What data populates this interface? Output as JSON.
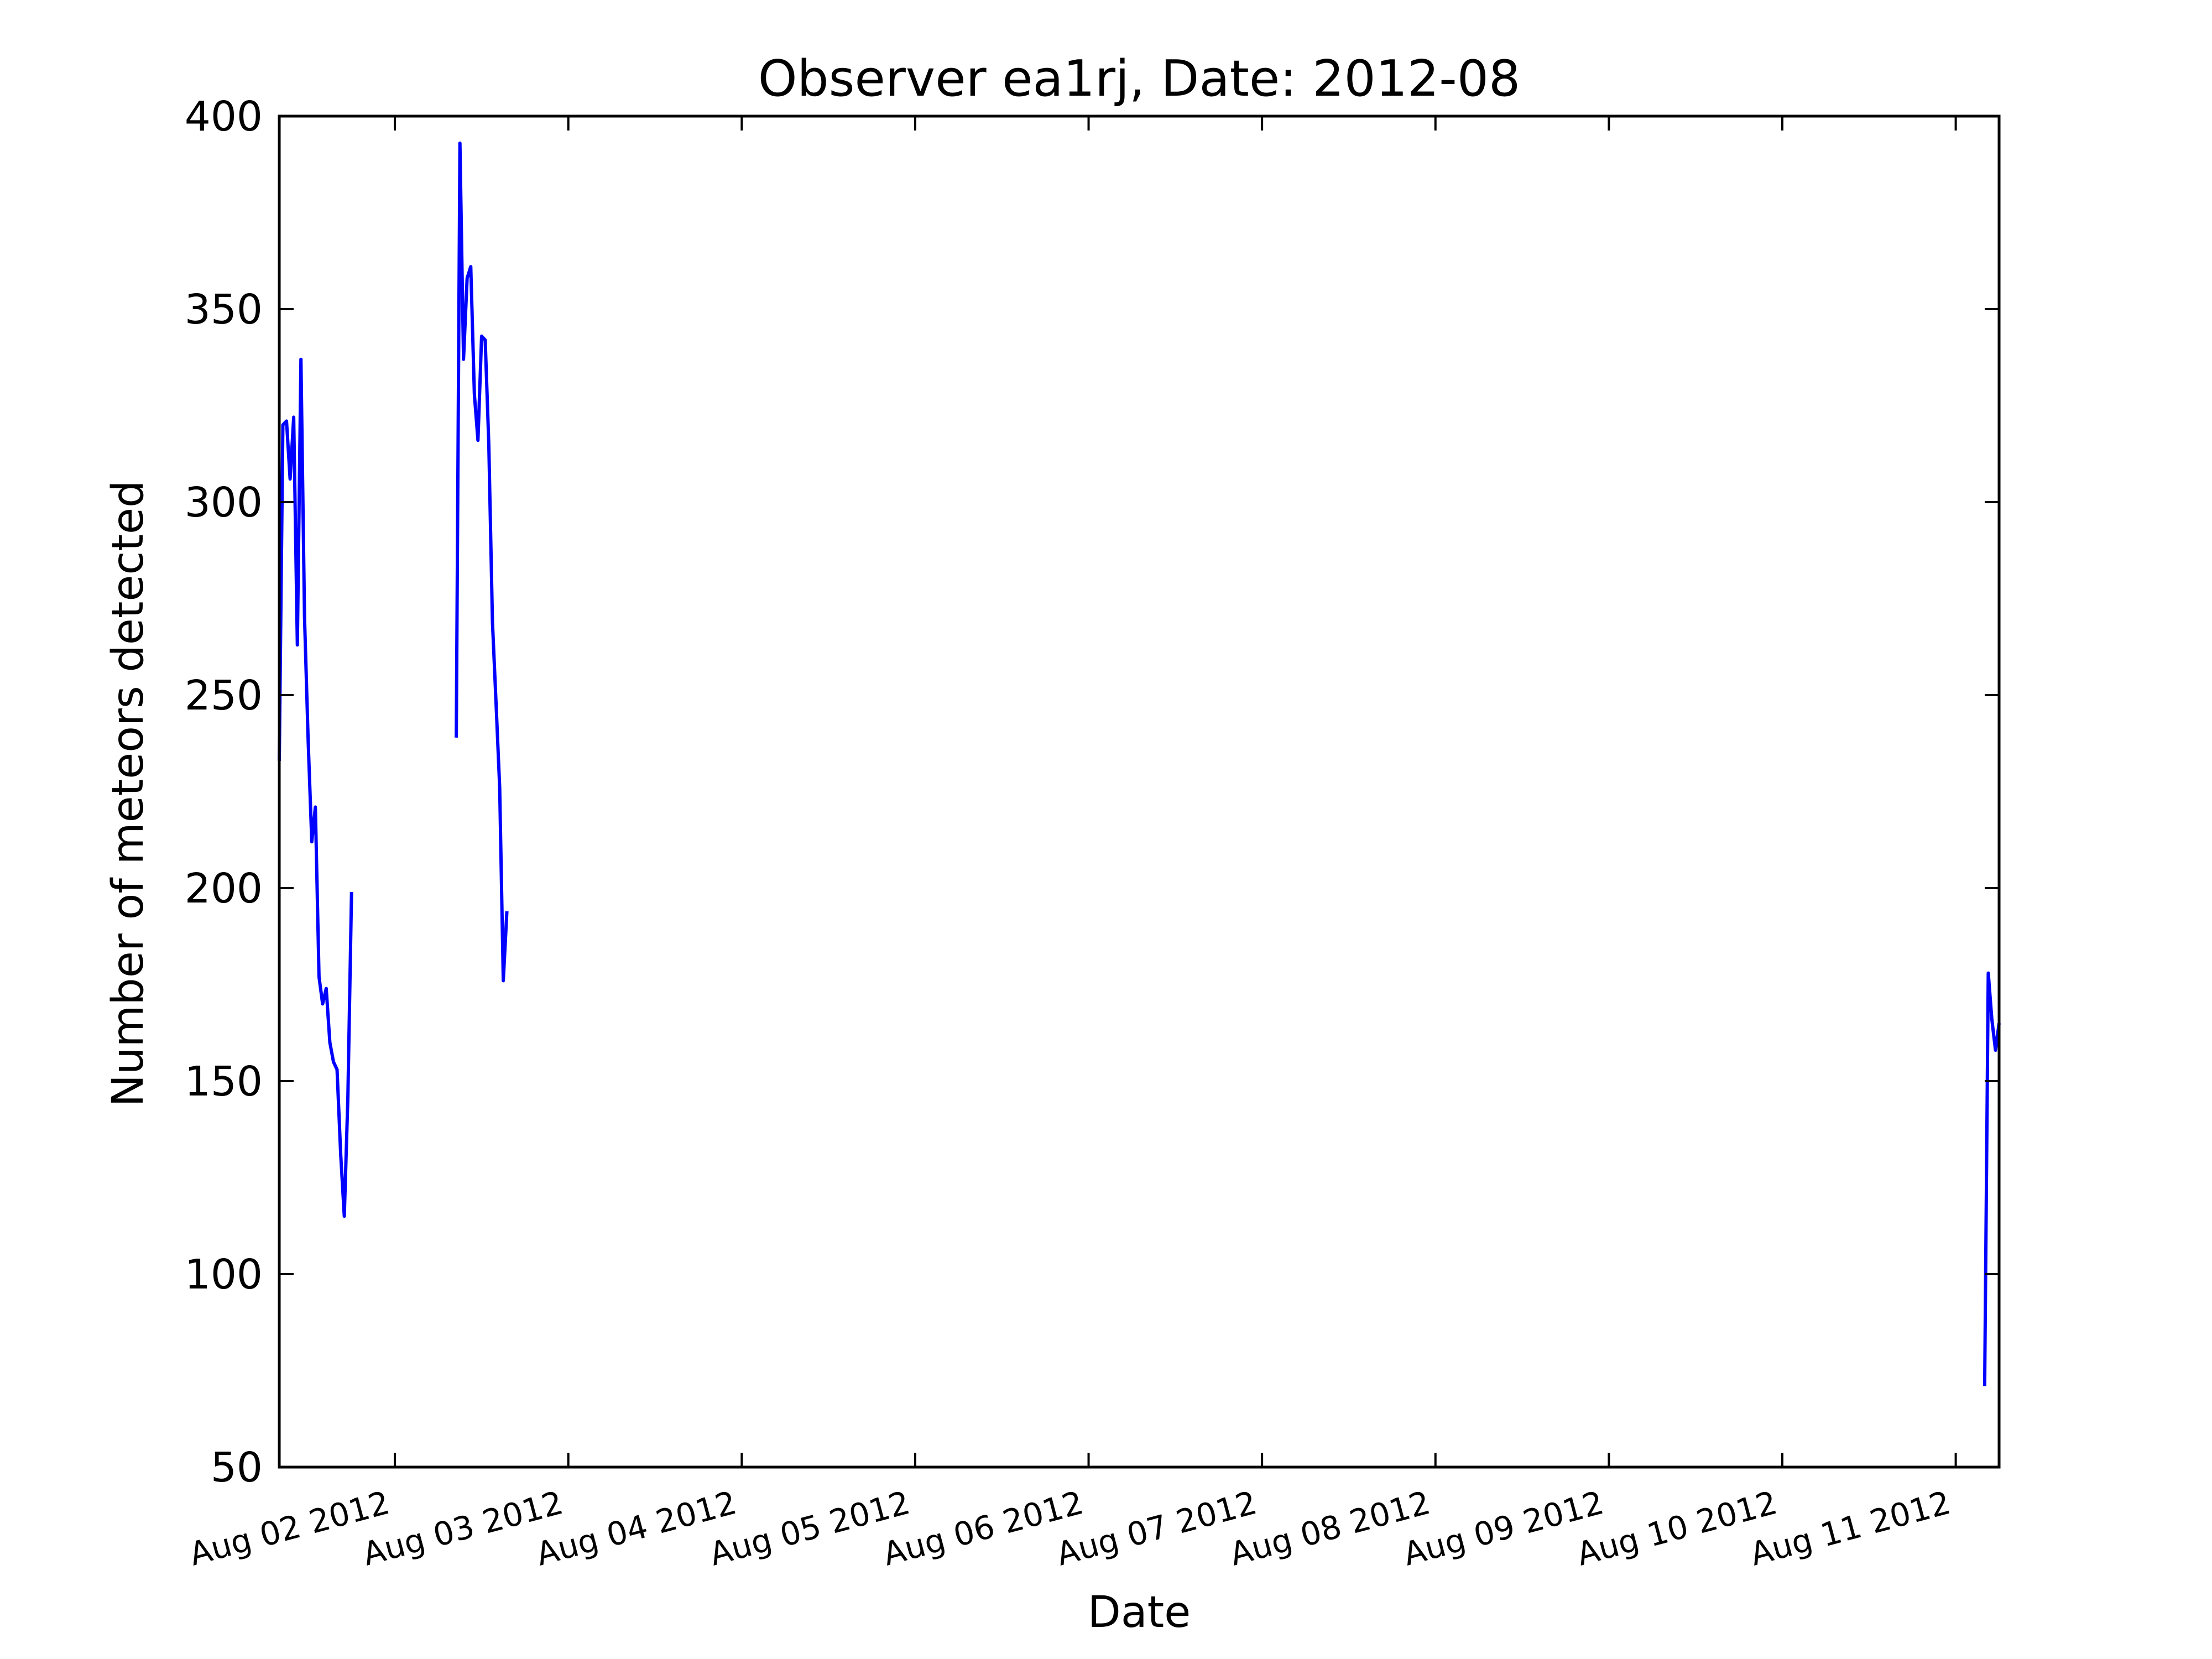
{
  "chart_data": {
    "type": "line",
    "title": "Observer ea1rj, Date: 2012-08",
    "xlabel": "Date",
    "ylabel": "Number of meteors detected",
    "xlim": [
      "2012-08-01 08:00",
      "2012-08-11 06:00"
    ],
    "ylim": [
      50,
      400
    ],
    "x_ticks": [
      {
        "date": "2012-08-02",
        "label": "Aug 02 2012"
      },
      {
        "date": "2012-08-03",
        "label": "Aug 03 2012"
      },
      {
        "date": "2012-08-04",
        "label": "Aug 04 2012"
      },
      {
        "date": "2012-08-05",
        "label": "Aug 05 2012"
      },
      {
        "date": "2012-08-06",
        "label": "Aug 06 2012"
      },
      {
        "date": "2012-08-07",
        "label": "Aug 07 2012"
      },
      {
        "date": "2012-08-08",
        "label": "Aug 08 2012"
      },
      {
        "date": "2012-08-09",
        "label": "Aug 09 2012"
      },
      {
        "date": "2012-08-10",
        "label": "Aug 10 2012"
      },
      {
        "date": "2012-08-11",
        "label": "Aug 11 2012"
      }
    ],
    "y_ticks": [
      50,
      100,
      150,
      200,
      250,
      300,
      350,
      400
    ],
    "grid": false,
    "series_color": "#0000ff",
    "segments": [
      {
        "points": [
          [
            "2012-08-01 08:00",
            233
          ],
          [
            "2012-08-01 08:30",
            320
          ],
          [
            "2012-08-01 09:00",
            321
          ],
          [
            "2012-08-01 09:30",
            306
          ],
          [
            "2012-08-01 10:00",
            322
          ],
          [
            "2012-08-01 10:30",
            263
          ],
          [
            "2012-08-01 11:00",
            337
          ],
          [
            "2012-08-01 11:30",
            270
          ],
          [
            "2012-08-01 12:00",
            238
          ],
          [
            "2012-08-01 12:30",
            212
          ],
          [
            "2012-08-01 13:00",
            221
          ],
          [
            "2012-08-01 13:30",
            177
          ],
          [
            "2012-08-01 14:00",
            170
          ],
          [
            "2012-08-01 14:30",
            174
          ],
          [
            "2012-08-01 15:00",
            160
          ],
          [
            "2012-08-01 15:30",
            155
          ],
          [
            "2012-08-01 16:00",
            153
          ],
          [
            "2012-08-01 16:30",
            131
          ],
          [
            "2012-08-01 17:00",
            115
          ],
          [
            "2012-08-01 17:30",
            146
          ],
          [
            "2012-08-01 18:00",
            199
          ]
        ]
      },
      {
        "points": [
          [
            "2012-08-02 08:30",
            239
          ],
          [
            "2012-08-02 09:00",
            393
          ],
          [
            "2012-08-02 09:30",
            337
          ],
          [
            "2012-08-02 10:00",
            358
          ],
          [
            "2012-08-02 10:30",
            361
          ],
          [
            "2012-08-02 11:00",
            328
          ],
          [
            "2012-08-02 11:30",
            316
          ],
          [
            "2012-08-02 12:00",
            343
          ],
          [
            "2012-08-02 12:30",
            342
          ],
          [
            "2012-08-02 13:00",
            315
          ],
          [
            "2012-08-02 13:30",
            269
          ],
          [
            "2012-08-02 14:00",
            248
          ],
          [
            "2012-08-02 14:30",
            226
          ],
          [
            "2012-08-02 15:00",
            176
          ],
          [
            "2012-08-02 15:30",
            194
          ]
        ]
      },
      {
        "points": [
          [
            "2012-08-11 04:00",
            71
          ],
          [
            "2012-08-11 04:30",
            178
          ],
          [
            "2012-08-11 05:00",
            166
          ],
          [
            "2012-08-11 05:30",
            158
          ],
          [
            "2012-08-11 06:00",
            165
          ]
        ]
      }
    ]
  }
}
